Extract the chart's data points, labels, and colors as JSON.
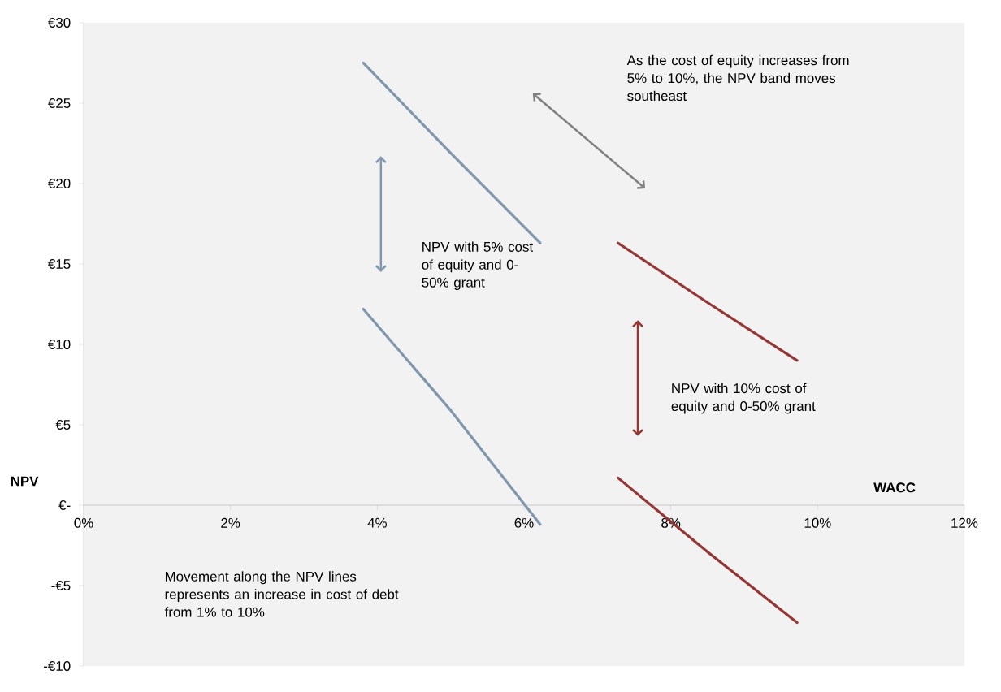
{
  "chart_data": {
    "type": "line",
    "xlabel": "WACC",
    "ylabel": "NPV",
    "xlim": [
      0,
      12
    ],
    "ylim": [
      -10,
      30
    ],
    "xticks": [
      {
        "value": 0,
        "label": "0%"
      },
      {
        "value": 2,
        "label": "2%"
      },
      {
        "value": 4,
        "label": "4%"
      },
      {
        "value": 6,
        "label": "6%"
      },
      {
        "value": 8,
        "label": "8%"
      },
      {
        "value": 10,
        "label": "10%"
      },
      {
        "value": 12,
        "label": "12%"
      }
    ],
    "yticks": [
      {
        "value": 30,
        "label": "€30"
      },
      {
        "value": 25,
        "label": "€25"
      },
      {
        "value": 20,
        "label": "€20"
      },
      {
        "value": 15,
        "label": "€15"
      },
      {
        "value": 10,
        "label": "€10"
      },
      {
        "value": 5,
        "label": "€5"
      },
      {
        "value": 0,
        "label": "€-"
      },
      {
        "value": -5,
        "label": "-€5"
      },
      {
        "value": -10,
        "label": "-€10"
      }
    ],
    "series": [
      {
        "color": "#7f96ad",
        "x": [
          3.81,
          5.0,
          6.22
        ],
        "values": [
          27.5,
          21.9,
          16.3
        ]
      },
      {
        "color": "#7f96ad",
        "x": [
          3.81,
          5.0,
          6.22
        ],
        "values": [
          12.2,
          5.9,
          -1.2
        ]
      },
      {
        "color": "#943634",
        "x": [
          7.28,
          8.5,
          9.72
        ],
        "values": [
          16.3,
          12.6,
          9.0
        ]
      },
      {
        "color": "#943634",
        "x": [
          7.28,
          8.5,
          9.72
        ],
        "values": [
          1.7,
          -2.9,
          -7.3
        ]
      }
    ],
    "annotations": [
      "As the cost of equity increases from 5% to 10%, the NPV band moves southeast",
      "NPV with 5% cost of equity and 0-50% grant",
      "NPV with 10% cost of equity and 0-50% grant",
      "Movement along the NPV lines represents an increase in cost of debt from 1% to 10%"
    ]
  }
}
